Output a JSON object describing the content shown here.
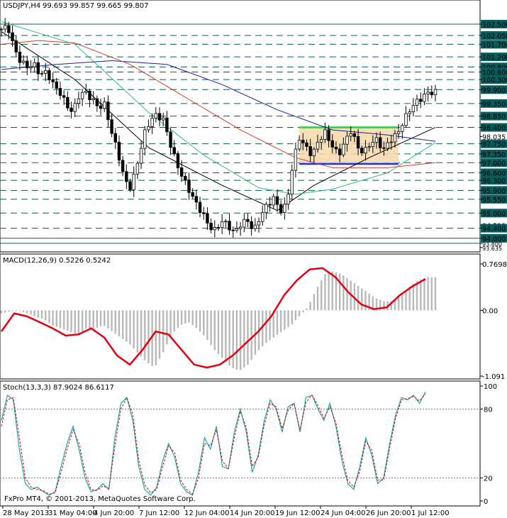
{
  "chart_data": [
    {
      "type": "candlestick",
      "panel": "main",
      "title": "USDJPY,H4",
      "ohlc_header": "99.693 99.857 99.665 99.807",
      "ylim": [
        93.6,
        102.95
      ],
      "price_scale_labels": [
        "102.500",
        "102.050",
        "101.700",
        "101.200",
        "100.800",
        "100.600",
        "100.300",
        "99.900",
        "99.350",
        "98.850",
        "98.400",
        "98.035",
        "97.750",
        "97.350",
        "97.000",
        "96.600",
        "96.300",
        "95.900",
        "95.550",
        "95.000",
        "94.510",
        "94.400",
        "94.000",
        "93.800",
        "93.635"
      ],
      "horizontal_levels": [
        102.5,
        102.05,
        101.7,
        101.2,
        100.8,
        100.6,
        100.3,
        99.9,
        99.35,
        98.85,
        98.4,
        97.75,
        97.35,
        97.0,
        96.6,
        96.3,
        95.9,
        95.55,
        95.0,
        94.4,
        94.0,
        93.8
      ],
      "last_price_label": "98.035",
      "bar_count": 119,
      "close_path": [
        102.3,
        102.4,
        101.5,
        101.0,
        100.8,
        100.9,
        100.5,
        100.6,
        100.1,
        99.8,
        99.3,
        99.0,
        99.7,
        99.8,
        99.5,
        99.2,
        99.3,
        98.2,
        97.4,
        96.3,
        96.0,
        97.0,
        98.1,
        98.7,
        98.9,
        98.7,
        97.8,
        97.0,
        96.4,
        95.9,
        95.4,
        95.0,
        94.5,
        94.3,
        94.7,
        94.5,
        94.2,
        94.6,
        94.7,
        94.3,
        94.9,
        95.3,
        95.6,
        95.1,
        95.3,
        97.0,
        98.0,
        97.6,
        97.3,
        97.9,
        98.2,
        97.7,
        97.3,
        97.8,
        98.3,
        97.6,
        97.4,
        97.8,
        97.9,
        97.5,
        97.9,
        98.1,
        98.6,
        99.1,
        99.4,
        99.6,
        99.8,
        99.8
      ],
      "consolidation_box": {
        "x_from": 81,
        "x_to": 108,
        "high": 98.4,
        "low": 96.95
      },
      "colors": {
        "up_candle": "#ffffff",
        "down_candle": "#000000",
        "level_line": "#0a5b5b",
        "box_fill": "#f4d8aa",
        "box_top": "#2ecc40",
        "box_bottom": "#1530ff"
      },
      "moving_averages": [
        {
          "color": "#000000",
          "points": [
            [
              0,
              102.2
            ],
            [
              20,
              100.3
            ],
            [
              40,
              97.6
            ],
            [
              60,
              96.1
            ],
            [
              75,
              95.1
            ],
            [
              85,
              96.1
            ],
            [
              100,
              97.2
            ],
            [
              118,
              98.4
            ]
          ]
        },
        {
          "color": "#2cc07a",
          "points": [
            [
              0,
              102.6
            ],
            [
              20,
              101.7
            ],
            [
              40,
              99.0
            ],
            [
              55,
              97.3
            ],
            [
              70,
              96.0
            ],
            [
              80,
              95.75
            ],
            [
              90,
              95.95
            ],
            [
              105,
              96.6
            ],
            [
              118,
              97.8
            ]
          ]
        },
        {
          "color": "#1e1e9e",
          "points": [
            [
              0,
              100.7
            ],
            [
              15,
              100.9
            ],
            [
              30,
              101.05
            ],
            [
              45,
              100.9
            ],
            [
              60,
              100.1
            ],
            [
              75,
              99.1
            ],
            [
              90,
              98.3
            ],
            [
              105,
              98.1
            ],
            [
              118,
              97.85
            ]
          ]
        },
        {
          "color": "#d73a2a",
          "points": [
            [
              0,
              101.7
            ],
            [
              10,
              101.85
            ],
            [
              20,
              101.75
            ],
            [
              35,
              100.9
            ],
            [
              50,
              99.6
            ],
            [
              65,
              98.3
            ],
            [
              80,
              97.2
            ],
            [
              90,
              96.8
            ],
            [
              105,
              96.8
            ],
            [
              118,
              97.0
            ]
          ]
        }
      ]
    },
    {
      "type": "bar",
      "panel": "macd",
      "title": "MACD(12,26,9) 0.5226 0.5242",
      "ylim": [
        -1.091,
        0.7698
      ],
      "tick_labels": [
        "0.7698",
        "0.00",
        "-1.091"
      ],
      "histogram": [
        -0.05,
        -0.02,
        0.0,
        -0.05,
        -0.1,
        -0.15,
        -0.25,
        -0.3,
        -0.35,
        -0.4,
        -0.3,
        -0.3,
        -0.25,
        -0.35,
        -0.45,
        -0.55,
        -0.7,
        -0.85,
        -0.95,
        -0.7,
        -0.4,
        -0.25,
        -0.2,
        -0.3,
        -0.45,
        -0.65,
        -0.8,
        -0.95,
        -1.0,
        -0.9,
        -0.7,
        -0.55,
        -0.45,
        -0.35,
        -0.25,
        -0.1,
        0.05,
        0.35,
        0.6,
        0.65,
        0.6,
        0.5,
        0.4,
        0.3,
        0.2,
        0.15,
        0.15,
        0.25,
        0.4,
        0.5,
        0.55,
        0.55
      ],
      "signal": [
        -0.35,
        -0.05,
        -0.1,
        -0.2,
        -0.3,
        -0.42,
        -0.4,
        -0.3,
        -0.45,
        -0.75,
        -0.9,
        -0.65,
        -0.35,
        -0.4,
        -0.65,
        -0.9,
        -0.95,
        -0.9,
        -0.75,
        -0.55,
        -0.35,
        -0.1,
        0.25,
        0.5,
        0.68,
        0.7,
        0.55,
        0.3,
        0.1,
        0.02,
        0.05,
        0.25,
        0.4,
        0.52
      ],
      "colors": {
        "histogram": "#b8b8b8",
        "signal": "#e0000f"
      }
    },
    {
      "type": "line",
      "panel": "stochastic",
      "title": "Stoch(13,3,3) 87.9024 86.6117",
      "ylim": [
        0,
        100
      ],
      "tick_labels": [
        "100",
        "80",
        "20",
        "0"
      ],
      "levels": [
        80,
        20
      ],
      "main": [
        70,
        92,
        88,
        45,
        15,
        10,
        12,
        8,
        5,
        8,
        30,
        50,
        65,
        45,
        20,
        8,
        10,
        15,
        10,
        55,
        85,
        90,
        70,
        30,
        10,
        5,
        12,
        35,
        50,
        38,
        15,
        8,
        5,
        25,
        55,
        45,
        65,
        30,
        28,
        60,
        80,
        60,
        25,
        40,
        70,
        88,
        80,
        60,
        82,
        85,
        60,
        90,
        92,
        80,
        70,
        85,
        65,
        35,
        15,
        10,
        30,
        55,
        40,
        15,
        20,
        50,
        75,
        90,
        88,
        92,
        85,
        95
      ],
      "signal": [
        65,
        88,
        90,
        55,
        20,
        12,
        10,
        9,
        6,
        7,
        25,
        45,
        62,
        50,
        25,
        10,
        9,
        13,
        11,
        48,
        80,
        90,
        75,
        35,
        14,
        7,
        10,
        30,
        48,
        42,
        18,
        10,
        6,
        20,
        50,
        48,
        62,
        35,
        28,
        55,
        78,
        64,
        30,
        38,
        66,
        85,
        82,
        63,
        79,
        85,
        62,
        86,
        92,
        83,
        72,
        82,
        68,
        40,
        18,
        12,
        26,
        52,
        44,
        18,
        18,
        46,
        72,
        88,
        89,
        91,
        87,
        93
      ],
      "colors": {
        "main": "#1aa7a7",
        "signal": "#e00000"
      }
    }
  ],
  "x_axis_labels": [
    "28 May 2013",
    "31 May 04:00",
    "4 Jun 20:00",
    "7 Jun 12:00",
    "12 Jun 04:00",
    "14 Jun 20:00",
    "19 Jun 12:00",
    "24 Jun 04:00",
    "26 Jun 20:00",
    "1 Jul 12:00"
  ],
  "footer_text": "FxPro MT4, © 2001-2013, MetaQuotes Software Corp."
}
